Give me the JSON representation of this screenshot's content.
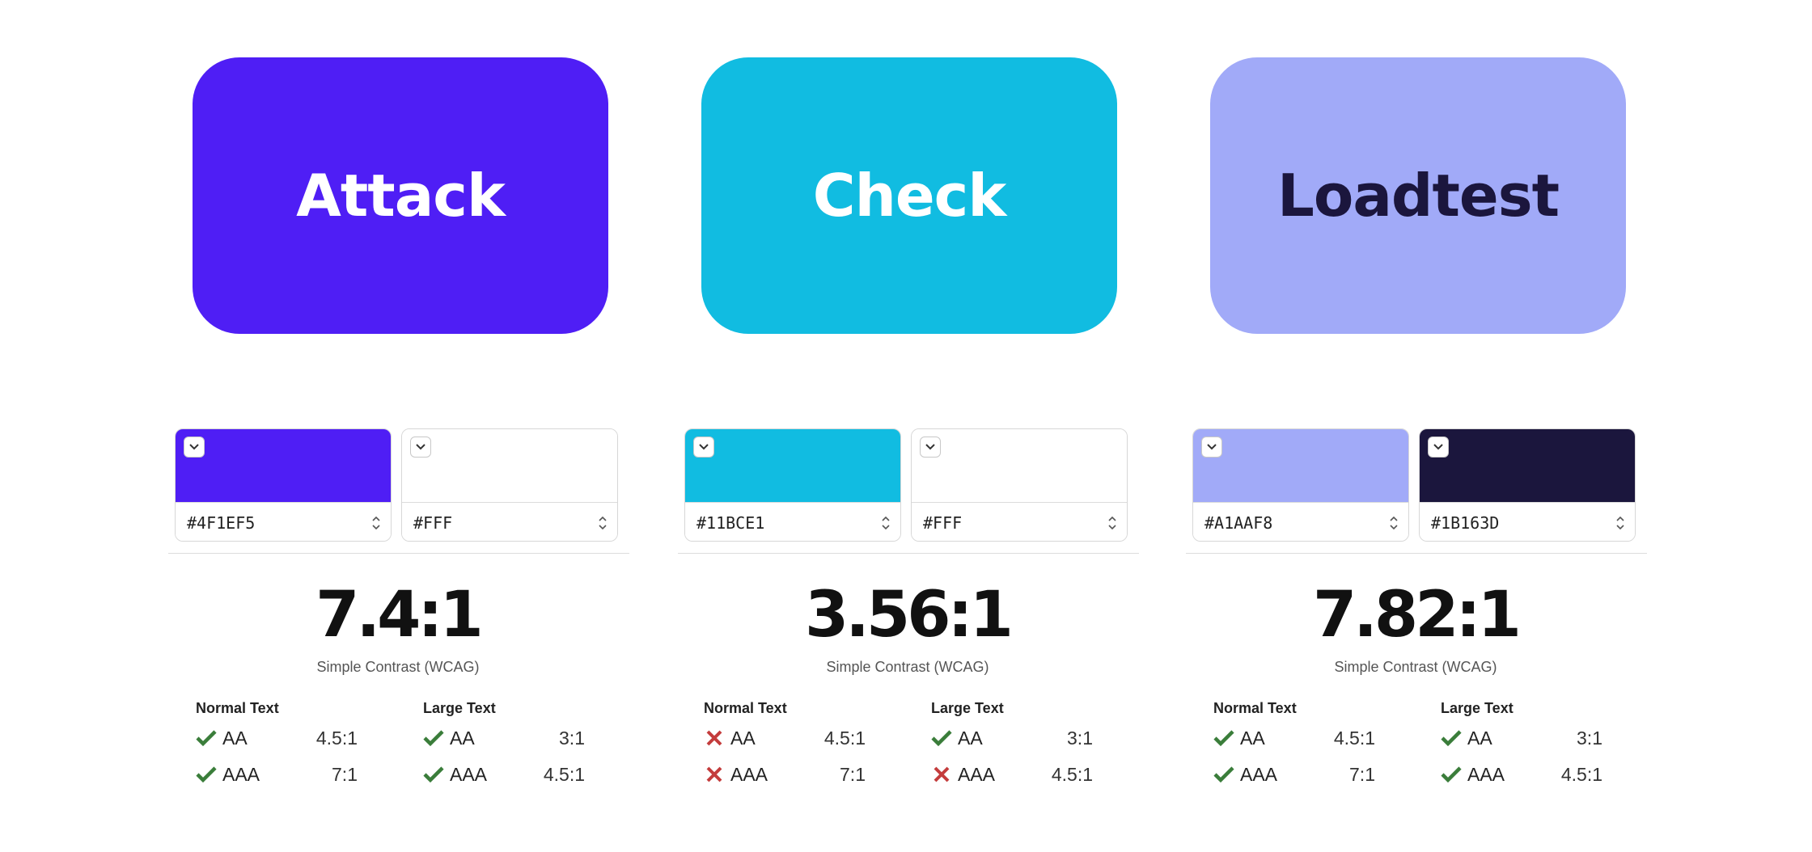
{
  "cards": [
    {
      "label": "Attack",
      "background": "#4F1EF5",
      "text_color": "#FFFFFF"
    },
    {
      "label": "Check",
      "background": "#11BCE1",
      "text_color": "#FFFFFF"
    },
    {
      "label": "Loadtest",
      "background": "#A1AAF8",
      "text_color": "#1B163D"
    }
  ],
  "checkers": [
    {
      "background_hex": "#4F1EF5",
      "background_color": "#4F1EF5",
      "foreground_hex": "#FFF",
      "foreground_color": "#FFFFFF",
      "ratio": "7.4:1",
      "caption": "Simple Contrast (WCAG)",
      "normal_text": {
        "heading": "Normal Text",
        "aa": {
          "label": "AA",
          "required": "4.5:1",
          "pass": true
        },
        "aaa": {
          "label": "AAA",
          "required": "7:1",
          "pass": true
        }
      },
      "large_text": {
        "heading": "Large Text",
        "aa": {
          "label": "AA",
          "required": "3:1",
          "pass": true
        },
        "aaa": {
          "label": "AAA",
          "required": "4.5:1",
          "pass": true
        }
      }
    },
    {
      "background_hex": "#11BCE1",
      "background_color": "#11BCE1",
      "foreground_hex": "#FFF",
      "foreground_color": "#FFFFFF",
      "ratio": "3.56:1",
      "caption": "Simple Contrast (WCAG)",
      "normal_text": {
        "heading": "Normal Text",
        "aa": {
          "label": "AA",
          "required": "4.5:1",
          "pass": false
        },
        "aaa": {
          "label": "AAA",
          "required": "7:1",
          "pass": false
        }
      },
      "large_text": {
        "heading": "Large Text",
        "aa": {
          "label": "AA",
          "required": "3:1",
          "pass": true
        },
        "aaa": {
          "label": "AAA",
          "required": "4.5:1",
          "pass": false
        }
      }
    },
    {
      "background_hex": "#A1AAF8",
      "background_color": "#A1AAF8",
      "foreground_hex": "#1B163D",
      "foreground_color": "#1B163D",
      "ratio": "7.82:1",
      "caption": "Simple Contrast (WCAG)",
      "normal_text": {
        "heading": "Normal Text",
        "aa": {
          "label": "AA",
          "required": "4.5:1",
          "pass": true
        },
        "aaa": {
          "label": "AAA",
          "required": "7:1",
          "pass": true
        }
      },
      "large_text": {
        "heading": "Large Text",
        "aa": {
          "label": "AA",
          "required": "3:1",
          "pass": true
        },
        "aaa": {
          "label": "AAA",
          "required": "4.5:1",
          "pass": true
        }
      }
    }
  ],
  "icons": {
    "pass": "checkmark-icon",
    "fail": "cross-icon",
    "dropdown": "chevron-down-icon",
    "stepper": "up-down-stepper-icon"
  },
  "status_colors": {
    "pass": "#3A7D3A",
    "fail": "#C43C3C"
  }
}
